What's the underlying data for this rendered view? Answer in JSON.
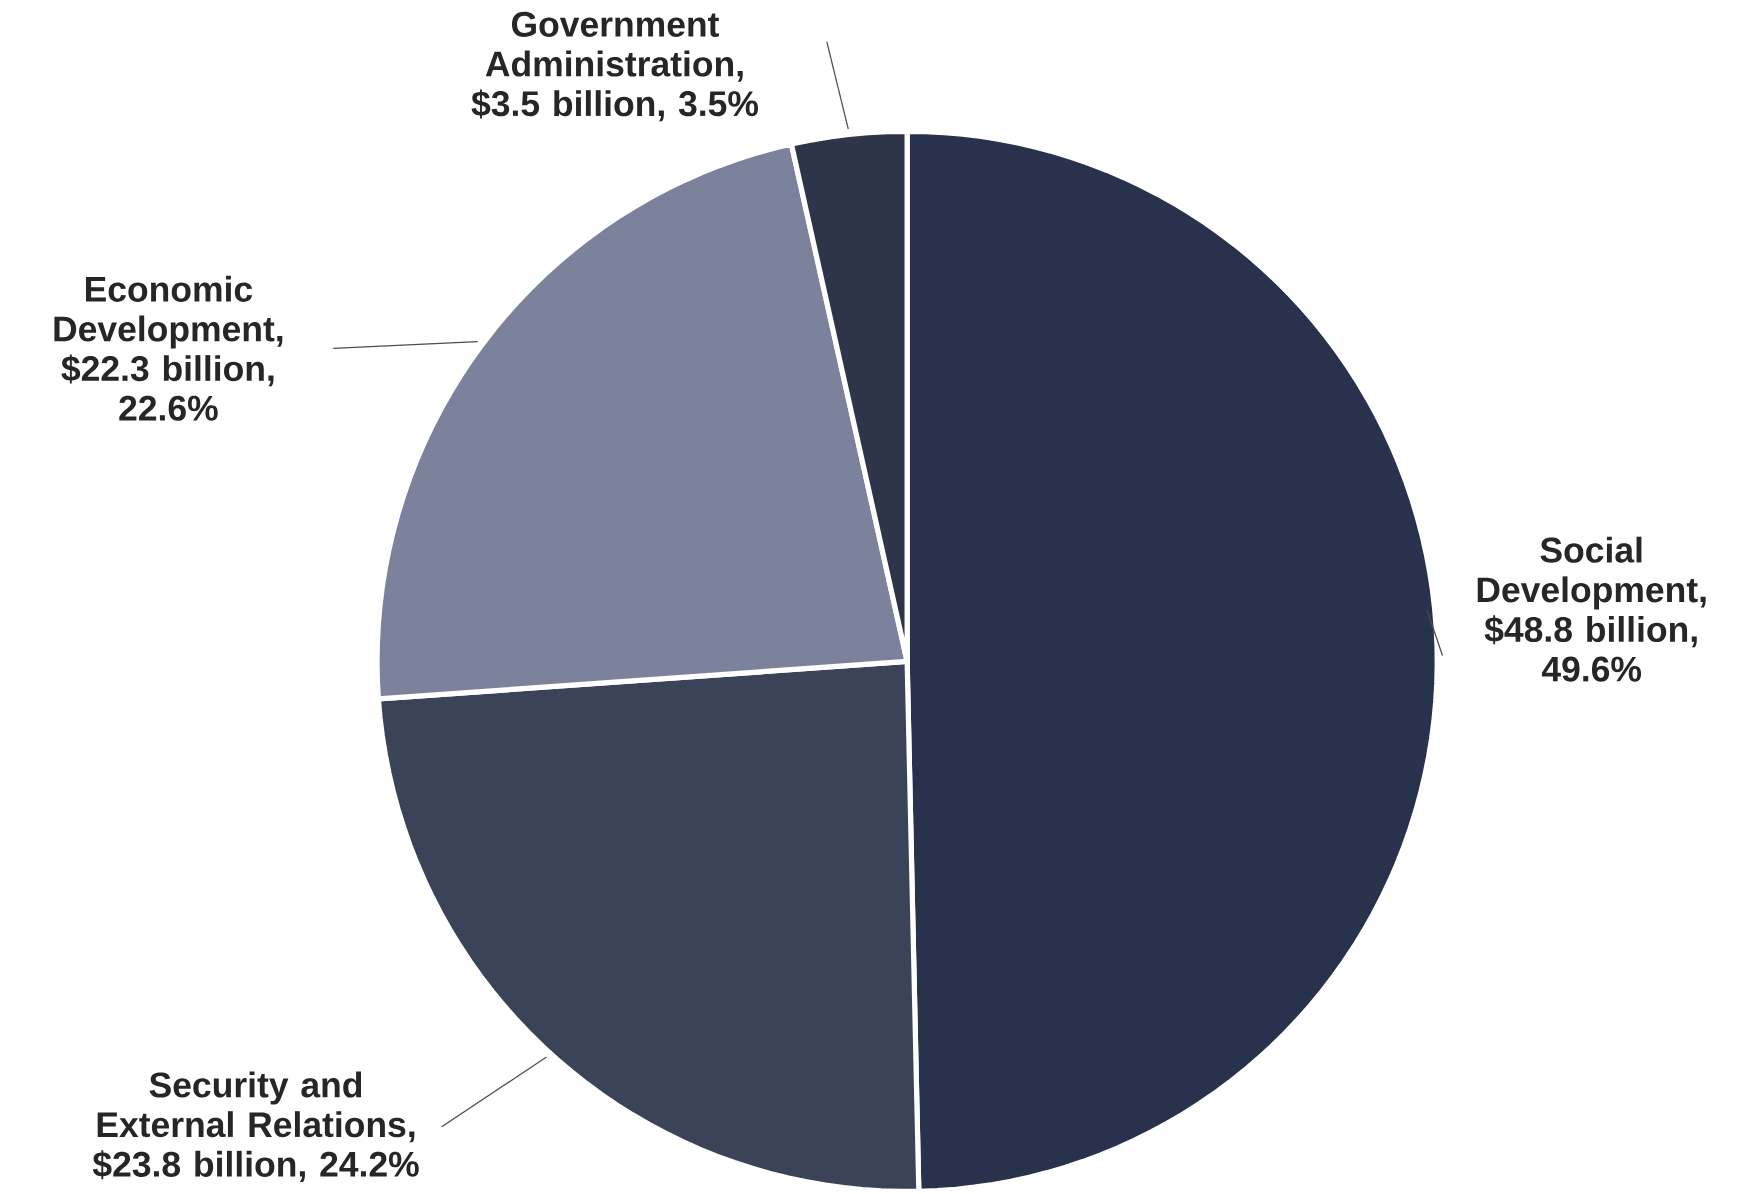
{
  "chart_data": {
    "type": "pie",
    "categories": [
      "Social Development, $48.8 billion, 49.6%",
      "Security and External Relations, $23.8 billion, 24.2%",
      "Economic Development, $22.3 billion, 22.6%",
      "Government Administration, $3.5 billion, 3.5%"
    ],
    "values": [
      49.6,
      24.2,
      22.6,
      3.5
    ],
    "colors": [
      "#28324c",
      "#3b4359",
      "#7c829c",
      "#2e3548"
    ]
  }
}
